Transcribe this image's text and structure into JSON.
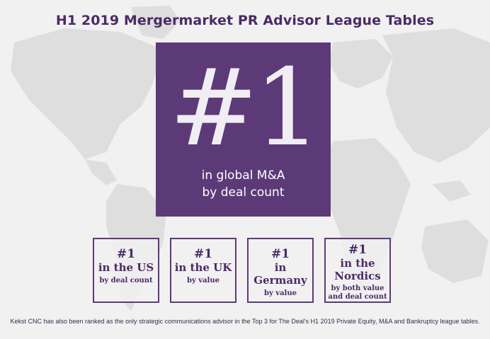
{
  "title": "H1 2019 Mergermarket PR Advisor League Tables",
  "hero": {
    "rank": "#1",
    "line1": "in global M&A",
    "line2": "by deal count"
  },
  "rankings": [
    {
      "rank": "#1",
      "region_lines": [
        "in the US"
      ],
      "basis_lines": [
        "by deal count"
      ]
    },
    {
      "rank": "#1",
      "region_lines": [
        "in the UK"
      ],
      "basis_lines": [
        "by value"
      ]
    },
    {
      "rank": "#1",
      "region_lines": [
        "in Germany"
      ],
      "basis_lines": [
        "by value"
      ]
    },
    {
      "rank": "#1",
      "region_lines": [
        "in the",
        "Nordics"
      ],
      "basis_lines": [
        "by both value",
        "and deal count"
      ]
    }
  ],
  "footnote": "Kekst CNC has also been ranked as the only strategic communications advisor in the Top 3 for The Deal's H1 2019 Private Equity, M&A and Bankruptcy league tables.",
  "colors": {
    "brand_purple": "#5c3a78",
    "title_purple": "#4b2a66",
    "background": "#f1f1f1",
    "map_gray": "#dedede"
  }
}
